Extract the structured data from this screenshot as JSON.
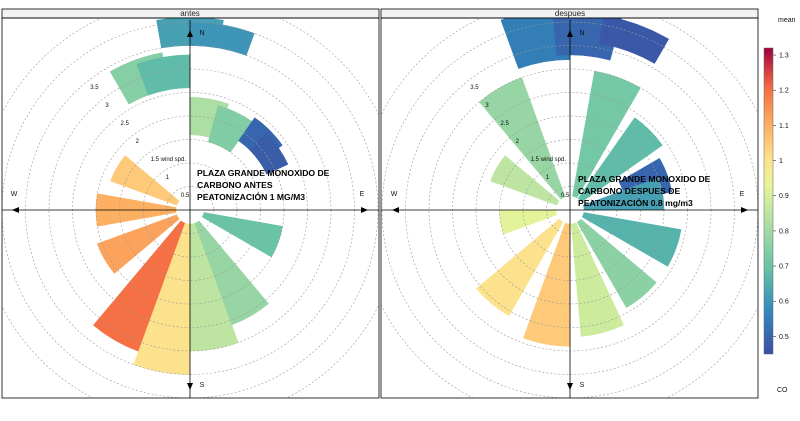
{
  "chart_data": {
    "type": "polar_heatmap",
    "colorbar": {
      "title": "mean",
      "label": "CO",
      "range": [
        0.45,
        1.32
      ],
      "ticks": [
        "0.5",
        "0.6",
        "0.7",
        "0.8",
        "0.9",
        "1",
        "1.1",
        "1.2",
        "1.3"
      ]
    },
    "compass": {
      "n": "N",
      "e": "E",
      "s": "S",
      "w": "W"
    },
    "panels": [
      {
        "title": "antes",
        "ring_labels": [
          "0.5",
          "1",
          "1.5 wind spd.",
          "2",
          "2.5",
          "3",
          "3.5"
        ],
        "annotation": [
          "PLAZA GRANDE MONOXIDO DE",
          "CARBONO ANTES",
          "PEATONIZACIÓN 1 MG/M3"
        ],
        "sectors": [
          {
            "dir": 0,
            "r": [
              3.5,
              4.1
            ],
            "value": 0.62
          },
          {
            "dir": 10,
            "r": [
              3.5,
              4.0
            ],
            "value": 0.6
          },
          {
            "dir": 340,
            "r": [
              2.6,
              3.4
            ],
            "value": 0.75
          },
          {
            "dir": 350,
            "r": [
              2.6,
              3.3
            ],
            "value": 0.68
          },
          {
            "dir": 10,
            "r": [
              1.6,
              2.4
            ],
            "value": 0.82
          },
          {
            "dir": 25,
            "r": [
              1.5,
              2.3
            ],
            "value": 0.74
          },
          {
            "dir": 45,
            "r": [
              1.8,
              2.4
            ],
            "value": 0.5
          },
          {
            "dir": 55,
            "r": [
              1.8,
              2.3
            ],
            "value": 0.48
          },
          {
            "dir": 300,
            "r": [
              0.3,
              1.8
            ],
            "value": 1.05
          },
          {
            "dir": 270,
            "r": [
              0.3,
              2.0
            ],
            "value": 1.1
          },
          {
            "dir": 240,
            "r": [
              0.3,
              2.1
            ],
            "value": 1.12
          },
          {
            "dir": 210,
            "r": [
              0.3,
              3.2
            ],
            "value": 1.2
          },
          {
            "dir": 190,
            "r": [
              0.3,
              3.5
            ],
            "value": 1.0
          },
          {
            "dir": 170,
            "r": [
              0.3,
              3.0
            ],
            "value": 0.85
          },
          {
            "dir": 150,
            "r": [
              0.3,
              2.6
            ],
            "value": 0.78
          },
          {
            "dir": 110,
            "r": [
              0.3,
              2.0
            ],
            "value": 0.7
          }
        ]
      },
      {
        "title": "despues",
        "ring_labels": [
          "0.5",
          "1",
          "1.5 wind spd.",
          "2",
          "2.5",
          "3",
          "3.5"
        ],
        "annotation": [
          "PLAZA GRANDE MONOXIDO DE",
          "CARBONO DESPUES DE",
          "PEATONIZACIÓN 0.8 mg/m3"
        ],
        "sectors": [
          {
            "dir": 350,
            "r": [
              3.2,
              4.3
            ],
            "value": 0.55
          },
          {
            "dir": 5,
            "r": [
              3.3,
              4.3
            ],
            "value": 0.5
          },
          {
            "dir": 20,
            "r": [
              3.6,
              4.2
            ],
            "value": 0.47
          },
          {
            "dir": 330,
            "r": [
              0.3,
              3.0
            ],
            "value": 0.78
          },
          {
            "dir": 20,
            "r": [
              0.3,
              3.0
            ],
            "value": 0.72
          },
          {
            "dir": 45,
            "r": [
              0.3,
              2.4
            ],
            "value": 0.68
          },
          {
            "dir": 70,
            "r": [
              1.2,
              2.2
            ],
            "value": 0.5
          },
          {
            "dir": 80,
            "r": [
              0.3,
              2.0
            ],
            "value": 0.62
          },
          {
            "dir": 110,
            "r": [
              0.3,
              2.4
            ],
            "value": 0.66
          },
          {
            "dir": 140,
            "r": [
              0.3,
              2.4
            ],
            "value": 0.76
          },
          {
            "dir": 165,
            "r": [
              0.3,
              2.7
            ],
            "value": 0.88
          },
          {
            "dir": 190,
            "r": [
              0.3,
              2.9
            ],
            "value": 1.05
          },
          {
            "dir": 220,
            "r": [
              0.3,
              2.6
            ],
            "value": 1.0
          },
          {
            "dir": 260,
            "r": [
              0.3,
              1.5
            ],
            "value": 0.92
          },
          {
            "dir": 300,
            "r": [
              0.3,
              1.8
            ],
            "value": 0.85
          }
        ]
      }
    ]
  }
}
